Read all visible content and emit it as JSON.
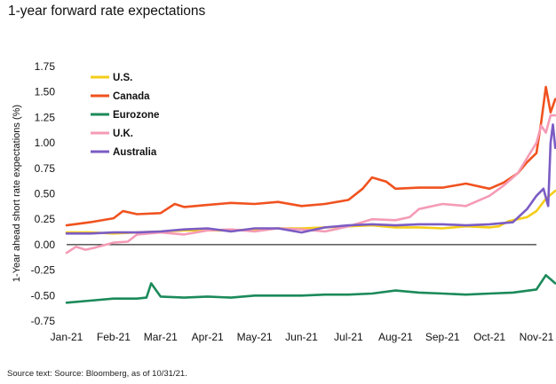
{
  "title": "1-year forward rate expectations",
  "source": "Source text: Source: Bloomberg, as of 10/31/21.",
  "chart_data": {
    "type": "line",
    "title": "1-year forward rate expectations",
    "xlabel": "",
    "ylabel": "1-Year ahead short rate expectations (%)",
    "x": [
      "Jan-21",
      "Feb-21",
      "Mar-21",
      "Apr-21",
      "May-21",
      "Jun-21",
      "Jul-21",
      "Aug-21",
      "Sep-21",
      "Oct-21",
      "Nov-21"
    ],
    "x_tick_labels": [
      "Jan-21",
      "Feb-21",
      "Mar-21",
      "Apr-21",
      "May-21",
      "Jun-21",
      "Jul-21",
      "Aug-21",
      "Sep-21",
      "Oct-21",
      "Nov-21"
    ],
    "y_tick_labels": [
      "1.75",
      "1.50",
      "1.25",
      "1.00",
      "0.75",
      "0.50",
      "0.25",
      "0.00",
      "-0.25",
      "-0.50",
      "-0.75"
    ],
    "ylim": [
      -0.75,
      1.75
    ],
    "grid": false,
    "legend_position": "top-left",
    "series": [
      {
        "name": "U.S.",
        "color": "#f5cd19",
        "x": [
          0,
          0.5,
          1,
          1.5,
          2,
          2.5,
          3,
          3.5,
          4,
          4.5,
          5,
          5.5,
          6,
          6.5,
          7,
          7.5,
          8,
          8.5,
          9,
          9.2,
          9.4,
          9.6,
          9.8,
          10,
          10.2,
          10.4
        ],
        "values": [
          0.12,
          0.12,
          0.11,
          0.12,
          0.13,
          0.14,
          0.14,
          0.14,
          0.15,
          0.16,
          0.16,
          0.17,
          0.18,
          0.19,
          0.17,
          0.17,
          0.16,
          0.18,
          0.17,
          0.18,
          0.23,
          0.25,
          0.27,
          0.33,
          0.45,
          0.53
        ]
      },
      {
        "name": "Canada",
        "color": "#f0521f",
        "x": [
          0,
          0.5,
          1,
          1.2,
          1.5,
          2,
          2.3,
          2.5,
          3,
          3.5,
          4,
          4.5,
          5,
          5.5,
          6,
          6.3,
          6.5,
          6.8,
          7,
          7.5,
          8,
          8.5,
          9,
          9.3,
          9.6,
          9.8,
          10,
          10.1,
          10.2,
          10.3,
          10.4
        ],
        "values": [
          0.19,
          0.22,
          0.26,
          0.33,
          0.3,
          0.31,
          0.4,
          0.37,
          0.39,
          0.41,
          0.4,
          0.42,
          0.38,
          0.4,
          0.44,
          0.55,
          0.66,
          0.62,
          0.55,
          0.56,
          0.56,
          0.6,
          0.55,
          0.61,
          0.7,
          0.81,
          0.9,
          1.2,
          1.55,
          1.3,
          1.43
        ]
      },
      {
        "name": "Eurozone",
        "color": "#1b8a5a",
        "x": [
          0,
          0.5,
          1,
          1.5,
          1.7,
          1.8,
          2,
          2.5,
          3,
          3.5,
          4,
          4.5,
          5,
          5.5,
          6,
          6.5,
          7,
          7.5,
          8,
          8.5,
          9,
          9.5,
          10,
          10.2,
          10.3,
          10.4
        ],
        "values": [
          -0.57,
          -0.55,
          -0.53,
          -0.53,
          -0.52,
          -0.38,
          -0.51,
          -0.52,
          -0.51,
          -0.52,
          -0.5,
          -0.5,
          -0.5,
          -0.49,
          -0.49,
          -0.48,
          -0.45,
          -0.47,
          -0.48,
          -0.49,
          -0.48,
          -0.47,
          -0.44,
          -0.3,
          -0.34,
          -0.38
        ]
      },
      {
        "name": "U.K.",
        "color": "#f59bb6",
        "x": [
          0,
          0.2,
          0.4,
          0.6,
          1,
          1.3,
          1.5,
          2,
          2.5,
          3,
          3.5,
          4,
          4.5,
          5,
          5.5,
          6,
          6.5,
          7,
          7.3,
          7.5,
          8,
          8.5,
          9,
          9.3,
          9.6,
          9.8,
          10,
          10.1,
          10.2,
          10.3,
          10.4
        ],
        "values": [
          -0.08,
          -0.02,
          -0.05,
          -0.03,
          0.02,
          0.03,
          0.1,
          0.12,
          0.1,
          0.14,
          0.15,
          0.13,
          0.16,
          0.15,
          0.13,
          0.18,
          0.25,
          0.24,
          0.27,
          0.35,
          0.4,
          0.38,
          0.48,
          0.58,
          0.7,
          0.85,
          1.0,
          1.17,
          1.1,
          1.27,
          1.27
        ]
      },
      {
        "name": "Australia",
        "color": "#7b5cc4",
        "x": [
          0,
          0.5,
          1,
          1.5,
          2,
          2.5,
          3,
          3.5,
          4,
          4.5,
          5,
          5.5,
          6,
          6.5,
          7,
          7.5,
          8,
          8.5,
          9,
          9.5,
          9.8,
          10,
          10.15,
          10.25,
          10.3,
          10.35,
          10.4
        ],
        "values": [
          0.11,
          0.11,
          0.12,
          0.12,
          0.13,
          0.15,
          0.16,
          0.13,
          0.16,
          0.16,
          0.12,
          0.17,
          0.19,
          0.2,
          0.19,
          0.2,
          0.2,
          0.19,
          0.2,
          0.22,
          0.35,
          0.48,
          0.55,
          0.38,
          1.0,
          1.18,
          0.95
        ]
      }
    ]
  }
}
